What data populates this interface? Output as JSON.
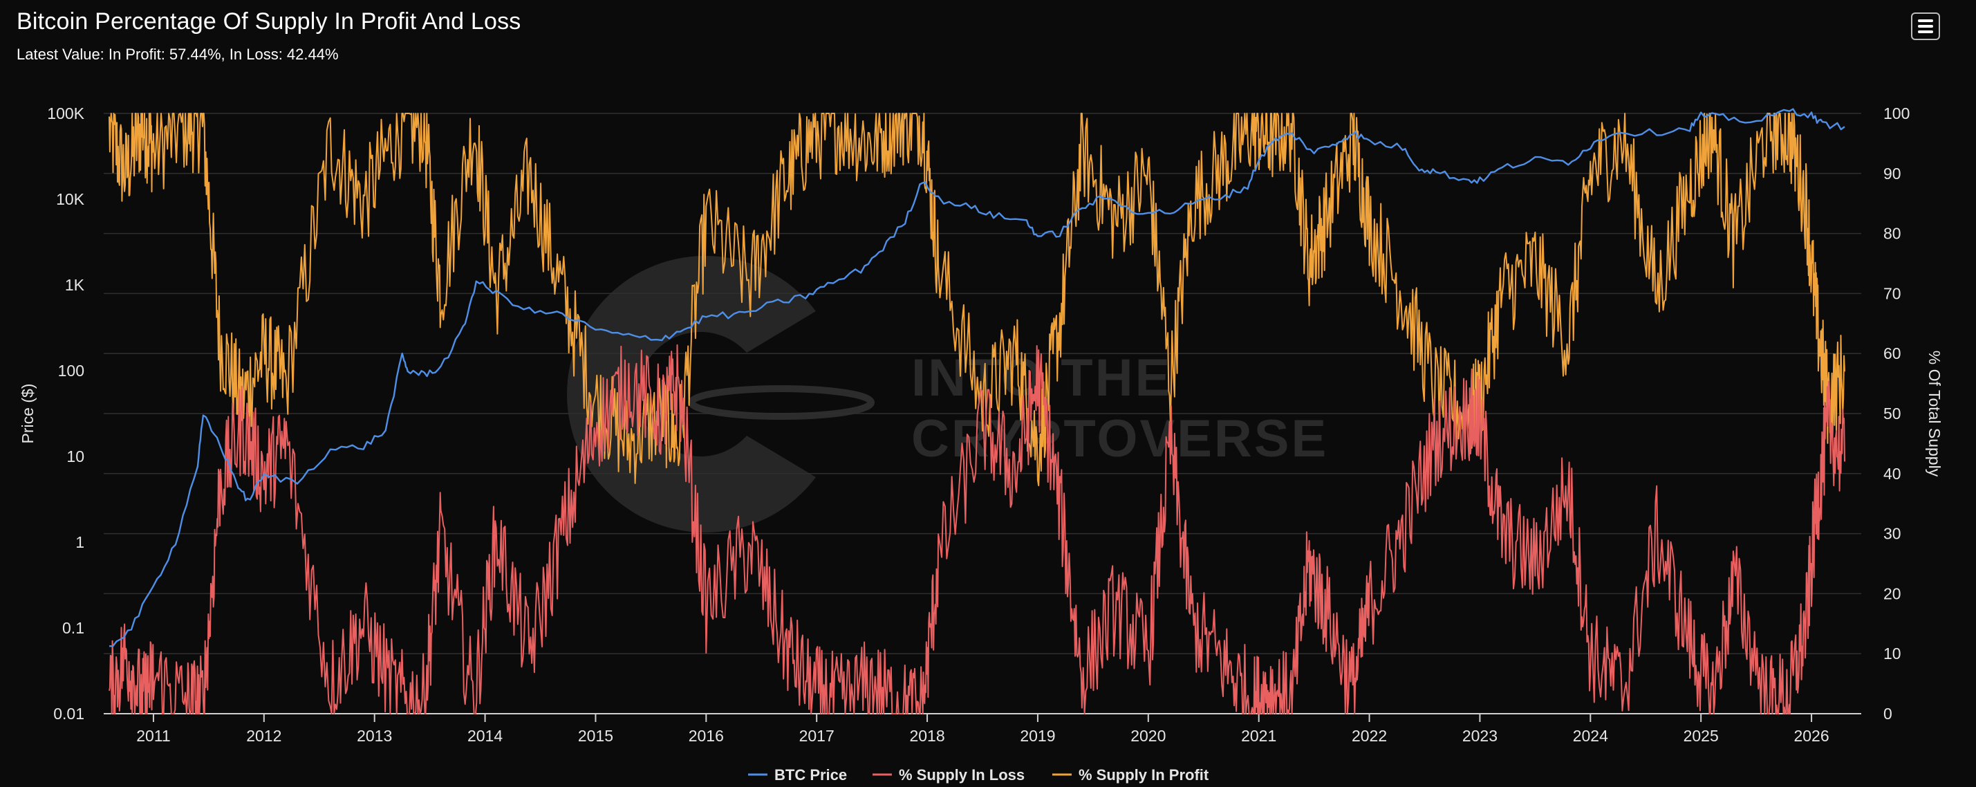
{
  "header": {
    "title": "Bitcoin Percentage Of Supply In Profit And Loss",
    "subtitle": "Latest Value: In Profit: 57.44%, In Loss: 42.44%"
  },
  "watermark": {
    "line1": "INTO THE",
    "line2": "CRYPTOVERSE"
  },
  "menu": {
    "icon": "hamburger-menu-icon"
  },
  "chart_data": {
    "type": "line",
    "title": "Bitcoin Percentage Of Supply In Profit And Loss",
    "subtitle": "Latest Value: In Profit: 57.44%, In Loss: 42.44%",
    "xlabel": "",
    "ylabel_left": "Price ($)",
    "ylabel_right": "% Of Total Supply",
    "x_range": [
      2010.55,
      2026.45
    ],
    "x_ticks": [
      "2011",
      "2012",
      "2013",
      "2014",
      "2015",
      "2016",
      "2017",
      "2018",
      "2019",
      "2020",
      "2021",
      "2022",
      "2023",
      "2024",
      "2025",
      "2026"
    ],
    "y_left_scale": "log",
    "y_left_range": [
      0.01,
      100000
    ],
    "y_left_ticks": [
      "0.01",
      "0.1",
      "1",
      "10",
      "100",
      "1K",
      "10K",
      "100K"
    ],
    "y_right_range": [
      0,
      100
    ],
    "y_right_ticks": [
      "0",
      "10",
      "20",
      "30",
      "40",
      "50",
      "60",
      "70",
      "80",
      "90",
      "100"
    ],
    "grid": true,
    "legend_position": "bottom-center",
    "series": [
      {
        "name": "BTC Price",
        "axis": "left",
        "color": "#4f8fe6",
        "x": [
          2010.6,
          2010.8,
          2011.0,
          2011.2,
          2011.4,
          2011.45,
          2011.6,
          2011.75,
          2011.85,
          2012.0,
          2012.3,
          2012.6,
          2012.9,
          2013.1,
          2013.25,
          2013.3,
          2013.45,
          2013.6,
          2013.8,
          2013.92,
          2014.1,
          2014.4,
          2014.7,
          2015.0,
          2015.3,
          2015.6,
          2015.8,
          2016.0,
          2016.3,
          2016.6,
          2016.9,
          2017.1,
          2017.4,
          2017.6,
          2017.8,
          2017.96,
          2018.1,
          2018.4,
          2018.6,
          2018.9,
          2019.0,
          2019.2,
          2019.4,
          2019.6,
          2019.9,
          2020.2,
          2020.4,
          2020.7,
          2020.9,
          2021.0,
          2021.15,
          2021.3,
          2021.5,
          2021.7,
          2021.85,
          2022.0,
          2022.3,
          2022.45,
          2022.6,
          2022.85,
          2023.0,
          2023.2,
          2023.5,
          2023.8,
          2024.0,
          2024.2,
          2024.6,
          2024.9,
          2025.0,
          2025.2,
          2025.5,
          2025.8,
          2026.0,
          2026.1,
          2026.3
        ],
        "values": [
          0.06,
          0.1,
          0.3,
          1,
          8,
          30,
          14,
          5,
          3,
          6,
          5,
          12,
          13,
          20,
          150,
          100,
          90,
          110,
          300,
          1100,
          800,
          500,
          450,
          300,
          250,
          240,
          300,
          430,
          450,
          600,
          740,
          1000,
          1500,
          2700,
          5500,
          17000,
          10000,
          8000,
          6500,
          5500,
          3700,
          4000,
          8000,
          10500,
          7200,
          7000,
          9000,
          11000,
          14000,
          29000,
          50000,
          58000,
          35000,
          45000,
          60000,
          47000,
          40000,
          23000,
          21000,
          17000,
          16500,
          23000,
          29000,
          27000,
          42000,
          60000,
          60000,
          68000,
          95000,
          90000,
          80000,
          110000,
          95000,
          75000,
          70000
        ]
      },
      {
        "name": "% Supply In Loss",
        "axis": "right",
        "color": "#e86060",
        "x": [
          2010.6,
          2010.75,
          2010.9,
          2011.0,
          2011.3,
          2011.45,
          2011.6,
          2011.8,
          2012.0,
          2012.2,
          2012.6,
          2012.9,
          2013.2,
          2013.45,
          2013.6,
          2013.9,
          2014.1,
          2014.4,
          2014.7,
          2015.0,
          2015.3,
          2015.6,
          2015.75,
          2016.0,
          2016.4,
          2016.7,
          2016.95,
          2017.2,
          2017.5,
          2017.75,
          2017.96,
          2018.1,
          2018.5,
          2018.8,
          2019.0,
          2019.2,
          2019.4,
          2019.7,
          2020.0,
          2020.2,
          2020.4,
          2020.7,
          2020.95,
          2021.1,
          2021.3,
          2021.45,
          2021.6,
          2021.85,
          2022.0,
          2022.3,
          2022.6,
          2022.9,
          2023.0,
          2023.2,
          2023.5,
          2023.8,
          2024.0,
          2024.3,
          2024.6,
          2024.9,
          2025.1,
          2025.3,
          2025.6,
          2025.8,
          2025.95,
          2026.05,
          2026.15,
          2026.3
        ],
        "values": [
          3,
          10,
          2,
          6,
          2,
          2,
          38,
          48,
          40,
          45,
          5,
          15,
          3,
          2,
          30,
          2,
          30,
          10,
          30,
          48,
          55,
          50,
          55,
          18,
          28,
          12,
          4,
          2,
          5,
          1,
          1,
          25,
          48,
          40,
          56,
          35,
          6,
          18,
          10,
          45,
          15,
          8,
          2,
          4,
          2,
          25,
          18,
          4,
          18,
          30,
          46,
          50,
          48,
          30,
          25,
          38,
          10,
          4,
          30,
          12,
          2,
          22,
          2,
          3,
          15,
          35,
          48,
          42
        ]
      },
      {
        "name": "% Supply In Profit",
        "axis": "right",
        "color": "#f0a33a",
        "x": [
          2010.6,
          2010.75,
          2010.9,
          2011.0,
          2011.3,
          2011.45,
          2011.6,
          2011.8,
          2012.0,
          2012.2,
          2012.6,
          2012.9,
          2013.2,
          2013.45,
          2013.6,
          2013.9,
          2014.1,
          2014.4,
          2014.7,
          2015.0,
          2015.3,
          2015.6,
          2015.75,
          2016.0,
          2016.4,
          2016.7,
          2016.95,
          2017.2,
          2017.5,
          2017.75,
          2017.96,
          2018.1,
          2018.5,
          2018.8,
          2019.0,
          2019.2,
          2019.4,
          2019.7,
          2020.0,
          2020.2,
          2020.4,
          2020.7,
          2020.95,
          2021.1,
          2021.3,
          2021.45,
          2021.6,
          2021.85,
          2022.0,
          2022.3,
          2022.6,
          2022.9,
          2023.0,
          2023.2,
          2023.5,
          2023.8,
          2024.0,
          2024.3,
          2024.6,
          2024.9,
          2025.1,
          2025.3,
          2025.6,
          2025.8,
          2025.95,
          2026.05,
          2026.15,
          2026.3
        ],
        "values": [
          97,
          90,
          98,
          94,
          98,
          98,
          62,
          52,
          60,
          55,
          95,
          85,
          97,
          98,
          70,
          98,
          70,
          90,
          70,
          52,
          45,
          50,
          45,
          82,
          72,
          88,
          96,
          98,
          95,
          99,
          99,
          75,
          52,
          60,
          44,
          65,
          94,
          82,
          90,
          55,
          85,
          92,
          98,
          96,
          98,
          75,
          82,
          96,
          82,
          70,
          54,
          50,
          52,
          70,
          75,
          62,
          90,
          96,
          70,
          88,
          98,
          78,
          98,
          97,
          85,
          65,
          52,
          57
        ]
      }
    ]
  },
  "legend": {
    "items": [
      {
        "label": "BTC Price",
        "color": "#4f8fe6"
      },
      {
        "label": "% Supply In Loss",
        "color": "#e86060"
      },
      {
        "label": "% Supply In Profit",
        "color": "#f0a33a"
      }
    ]
  }
}
